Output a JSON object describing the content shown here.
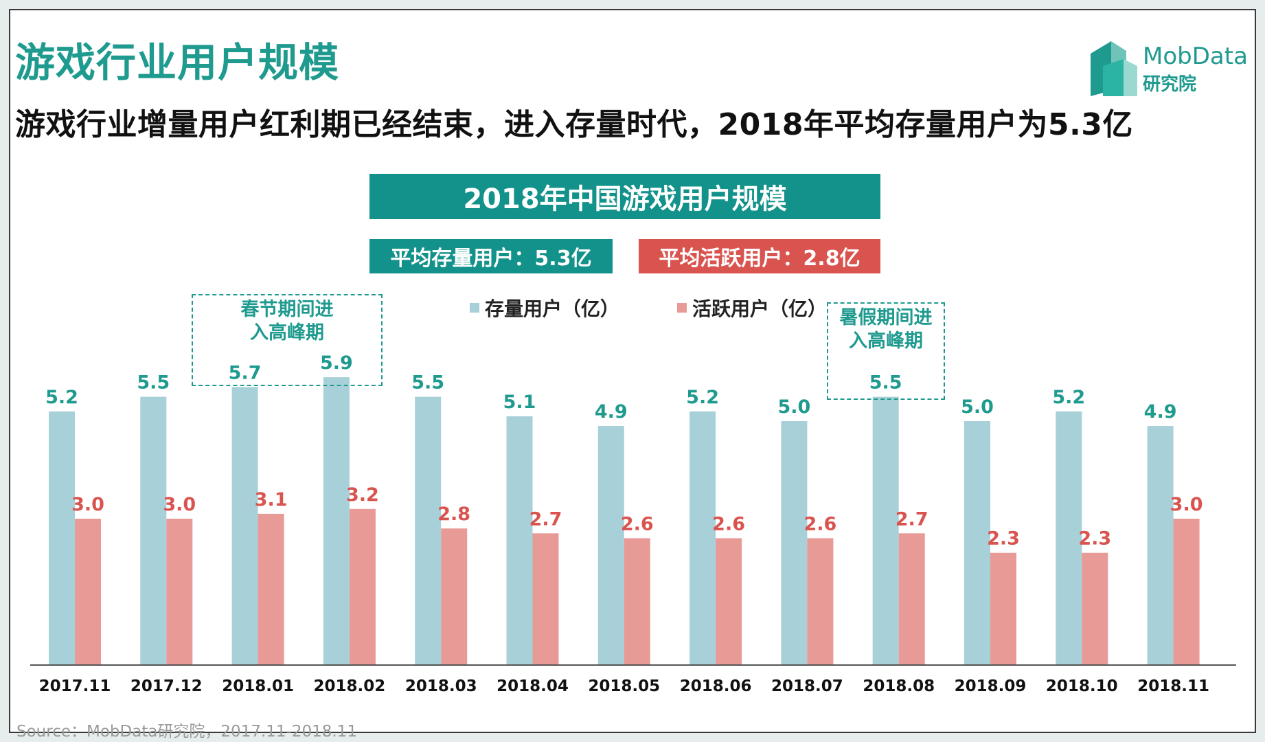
{
  "header": {
    "title": "游戏行业用户规模",
    "subtitle": "游戏行业增量用户红利期已经结束，进入存量时代，2018年平均存量用户为5.3亿"
  },
  "logo": {
    "name_en": "MobData",
    "name_cn": "研究院"
  },
  "stats": {
    "stock_label": "平均存量用户：5.3亿",
    "active_label": "平均活跃用户：2.8亿"
  },
  "annotations": {
    "spring": "春节期间进\n入高峰期",
    "summer": "暑假期间进\n入高峰期"
  },
  "source": "Source：MobData研究院，2017.11-2018.11",
  "colors": {
    "teal": "#12928a",
    "stock_bar": "#a8d0d8",
    "stock_label": "#1f9a8f",
    "active_bar": "#e89a96",
    "active_label": "#d9534f"
  },
  "chart_data": {
    "type": "bar",
    "title": "2018年中国游戏用户规模",
    "categories": [
      "2017.11",
      "2017.12",
      "2018.01",
      "2018.02",
      "2018.03",
      "2018.04",
      "2018.05",
      "2018.06",
      "2018.07",
      "2018.08",
      "2018.09",
      "2018.10",
      "2018.11"
    ],
    "series": [
      {
        "name": "存量用户（亿）",
        "values": [
          5.2,
          5.5,
          5.7,
          5.9,
          5.5,
          5.1,
          4.9,
          5.2,
          5.0,
          5.5,
          5.0,
          5.2,
          4.9
        ]
      },
      {
        "name": "活跃用户（亿）",
        "values": [
          3.0,
          3.0,
          3.1,
          3.2,
          2.8,
          2.7,
          2.6,
          2.6,
          2.6,
          2.7,
          2.3,
          2.3,
          3.0
        ]
      }
    ],
    "ylim": [
      0,
      6.0
    ],
    "grid": false,
    "legend_position": "top-center",
    "data_labels": true
  }
}
